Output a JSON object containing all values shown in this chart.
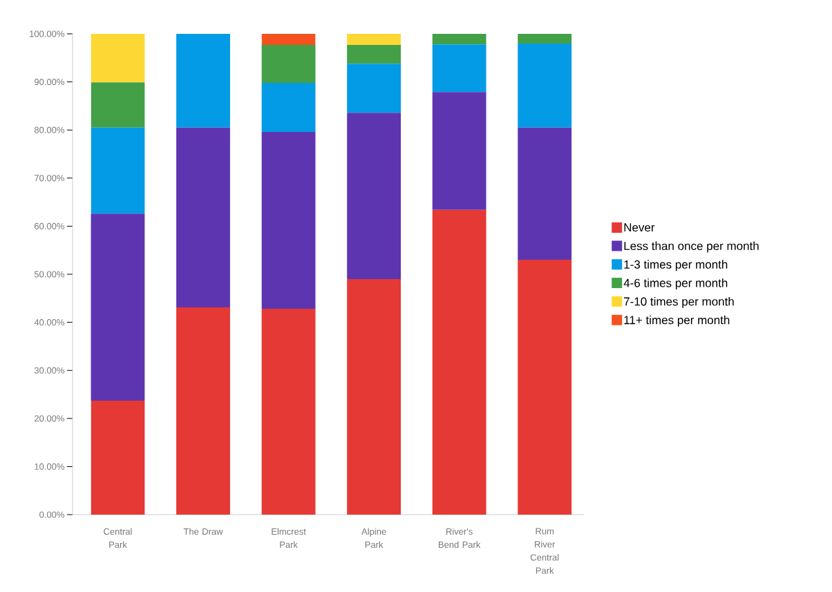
{
  "chart_data": {
    "type": "bar",
    "stacked": true,
    "categories": [
      "Central Park",
      "The Draw",
      "Elmcrest Park",
      "Alpine Park",
      "River's Bend Park",
      "Rum River Central Park"
    ],
    "series": [
      {
        "name": "Never",
        "color": "#e53935",
        "values": [
          23.7,
          43.1,
          42.8,
          49.0,
          63.4,
          53.0
        ]
      },
      {
        "name": "Less than once per month",
        "color": "#5e35b1",
        "values": [
          38.9,
          37.4,
          36.8,
          34.6,
          24.5,
          27.5
        ]
      },
      {
        "name": "1-3 times per month",
        "color": "#039be5",
        "values": [
          17.9,
          19.5,
          10.2,
          10.2,
          9.9,
          17.5
        ]
      },
      {
        "name": "4-6 times per month",
        "color": "#43a047",
        "values": [
          9.4,
          0,
          7.9,
          3.9,
          2.2,
          2.0
        ]
      },
      {
        "name": "7-10 times per month",
        "color": "#fdd835",
        "values": [
          10.1,
          0,
          0,
          2.3,
          0,
          0
        ]
      },
      {
        "name": "11+ times per month",
        "color": "#f4511e",
        "values": [
          0,
          0,
          2.3,
          0,
          0,
          0
        ]
      }
    ],
    "ylim": [
      0,
      100
    ],
    "yticks": [
      {
        "value": 0,
        "label": "0.00%"
      },
      {
        "value": 10,
        "label": "10.00%"
      },
      {
        "value": 20,
        "label": "20.00%"
      },
      {
        "value": 30,
        "label": "30.00%"
      },
      {
        "value": 40,
        "label": "40.00%"
      },
      {
        "value": 50,
        "label": "50.00%"
      },
      {
        "value": 60,
        "label": "60.00%"
      },
      {
        "value": 70,
        "label": "70.00%"
      },
      {
        "value": 80,
        "label": "80.00%"
      },
      {
        "value": 90,
        "label": "90.00%"
      },
      {
        "value": 100,
        "label": "100.00%"
      }
    ],
    "grid": false,
    "legend": "right"
  }
}
